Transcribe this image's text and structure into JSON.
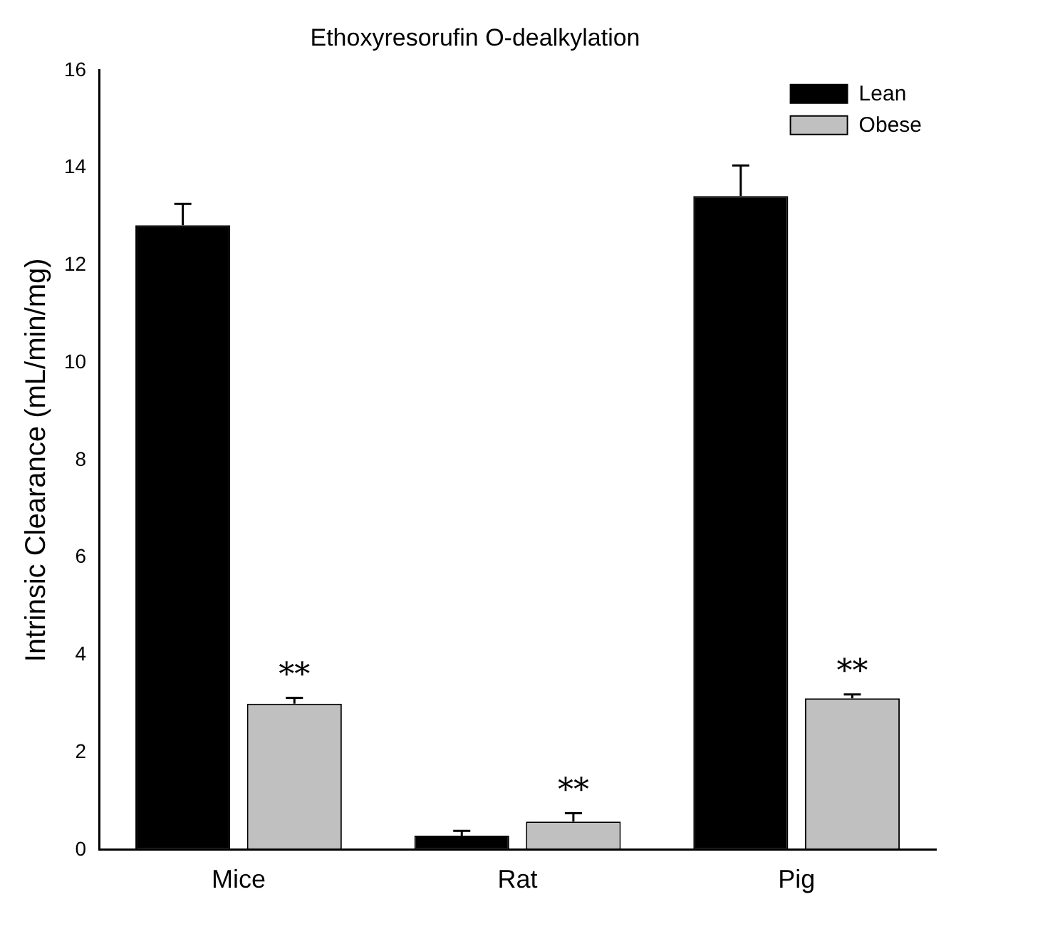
{
  "chart_data": {
    "type": "bar",
    "title": "Ethoxyresorufin O-dealkylation",
    "ylabel": "Intrinsic Clearance (mL/min/mg)",
    "categories": [
      "Mice",
      "Rat",
      "Pig"
    ],
    "series": [
      {
        "name": "Lean",
        "color": "#000000",
        "values": [
          12.82,
          0.29,
          13.42
        ],
        "errors": [
          [
            12.82,
            13.26
          ],
          [
            0.29,
            0.39
          ],
          [
            13.42,
            14.05
          ]
        ]
      },
      {
        "name": "Obese",
        "color": "#c0c0c0",
        "values": [
          3.0,
          0.58,
          3.11
        ],
        "errors": [
          [
            3.0,
            3.12
          ],
          [
            0.58,
            0.75
          ],
          [
            3.11,
            3.19
          ]
        ]
      }
    ],
    "annotations": [
      "**",
      "**",
      "**"
    ],
    "ylim": [
      0,
      16
    ],
    "yticks": [
      0,
      2,
      4,
      6,
      8,
      10,
      12,
      14,
      16
    ],
    "grid": false,
    "legend": "top right"
  }
}
